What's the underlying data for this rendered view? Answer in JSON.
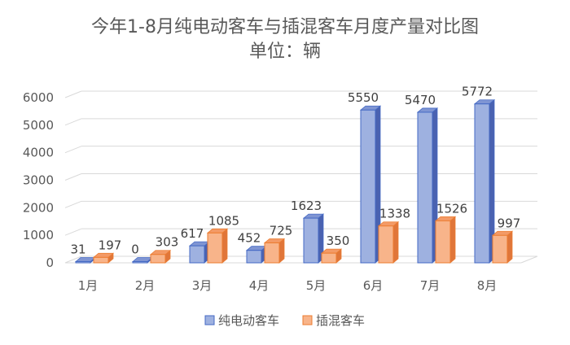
{
  "chart_data": {
    "type": "bar",
    "title": "今年1-8月纯电动客车与插混客车月度产量对比图",
    "subtitle": "单位：辆",
    "xlabel": "",
    "ylabel": "",
    "categories": [
      "1月",
      "2月",
      "3月",
      "4月",
      "5月",
      "6月",
      "7月",
      "8月"
    ],
    "series": [
      {
        "name": "纯电动客车",
        "values": [
          31,
          0,
          617,
          452,
          1623,
          5550,
          5470,
          5772
        ],
        "labels": [
          "31",
          "0",
          "617",
          "452",
          "1623",
          "5550",
          "5470",
          "5772"
        ]
      },
      {
        "name": "插混客车",
        "values": [
          197,
          303,
          1085,
          725,
          350,
          1338,
          1526,
          997
        ],
        "labels": [
          "197",
          "303",
          "1085",
          "725",
          "350",
          "1338",
          "1526",
          "997"
        ]
      }
    ],
    "yticks": [
      "0",
      "1000",
      "2000",
      "3000",
      "4000",
      "5000",
      "6000"
    ],
    "ylim": [
      0,
      6000
    ],
    "grid": true,
    "legend_position": "bottom",
    "colors": {
      "series1_front": "#9eb1e0",
      "series1_side": "#4a62b0",
      "series1_top": "#7f95d3",
      "series1_edge": "#4469c4",
      "series2_front": "#f8b48a",
      "series2_side": "#e0763a",
      "series2_top": "#f39a66",
      "series2_edge": "#ec7c30",
      "grid": "#d9d9d9",
      "text": "#595959"
    }
  }
}
